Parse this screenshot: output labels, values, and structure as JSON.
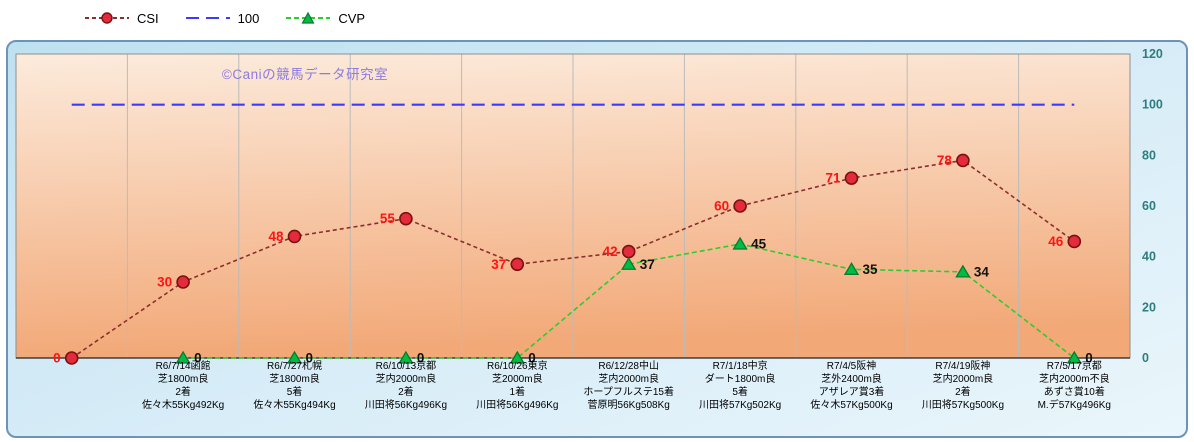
{
  "watermark": "©Caniの競馬データ研究室",
  "legend": [
    {
      "label": "CSI",
      "series": "CSI"
    },
    {
      "label": "100",
      "series": "100"
    },
    {
      "label": "CVP",
      "series": "CVP"
    }
  ],
  "chart_data": {
    "type": "line",
    "title": "",
    "ylim": [
      0,
      120
    ],
    "yticks": [
      0,
      20,
      40,
      60,
      80,
      100,
      120
    ],
    "grid": "vertical",
    "legend_position": "top-left",
    "categories": [
      [],
      [
        "R6/7/14函館",
        "芝1800m良",
        "2着",
        "佐々木55Kg492Kg"
      ],
      [
        "R6/7/27札幌",
        "芝1800m良",
        "5着",
        "佐々木55Kg494Kg"
      ],
      [
        "R6/10/13京都",
        "芝内2000m良",
        "2着",
        "川田将56Kg496Kg"
      ],
      [
        "R6/10/26東京",
        "芝2000m良",
        "1着",
        "川田将56Kg496Kg"
      ],
      [
        "R6/12/28中山",
        "芝内2000m良",
        "ホープフルステ15着",
        "菅原明56Kg508Kg"
      ],
      [
        "R7/1/18中京",
        "ダート1800m良",
        "5着",
        "川田将57Kg502Kg"
      ],
      [
        "R7/4/5阪神",
        "芝外2400m良",
        "アザレア賞3着",
        "佐々木57Kg500Kg"
      ],
      [
        "R7/4/19阪神",
        "芝内2000m良",
        "2着",
        "川田将57Kg500Kg"
      ],
      [
        "R7/5/17京都",
        "芝内2000m不良",
        "あずさ賞10着",
        "M.デ57Kg496Kg"
      ]
    ],
    "series": [
      {
        "name": "CSI",
        "marker": "circle",
        "label_side": "left",
        "dash": "4 3",
        "line_color": "#8B2E2E",
        "marker_fill": "#E32B3C",
        "marker_stroke": "#7A1212",
        "label_color": "#FF1414",
        "values": [
          0,
          30,
          48,
          55,
          37,
          42,
          60,
          71,
          78,
          46
        ]
      },
      {
        "name": "100",
        "reference_value": 100,
        "dash": "13 7",
        "line_color": "#3B3BFF"
      },
      {
        "name": "CVP",
        "marker": "triangle",
        "label_side": "right",
        "dash": "5 3",
        "line_color": "#2FCC2F",
        "marker_fill": "#00BC46",
        "marker_stroke": "#0B7A2B",
        "label_color": "#111111",
        "values": [
          null,
          0,
          0,
          0,
          0,
          37,
          45,
          35,
          34,
          0
        ]
      }
    ]
  },
  "colors": {
    "card_border": "#6E93B6",
    "card_bg_top": "#BEE1F0",
    "card_bg_bottom": "#EAF6FB",
    "plot_grad_top": "#FCEBDC",
    "plot_grad_bottom": "#F2A877",
    "grid": "#BBBBBB",
    "plot_border": "#8F8F8F",
    "axis": "#222222",
    "ytick": "#2E7D7D",
    "xtick": "#000000",
    "watermark_color": "#8E7AE0"
  }
}
